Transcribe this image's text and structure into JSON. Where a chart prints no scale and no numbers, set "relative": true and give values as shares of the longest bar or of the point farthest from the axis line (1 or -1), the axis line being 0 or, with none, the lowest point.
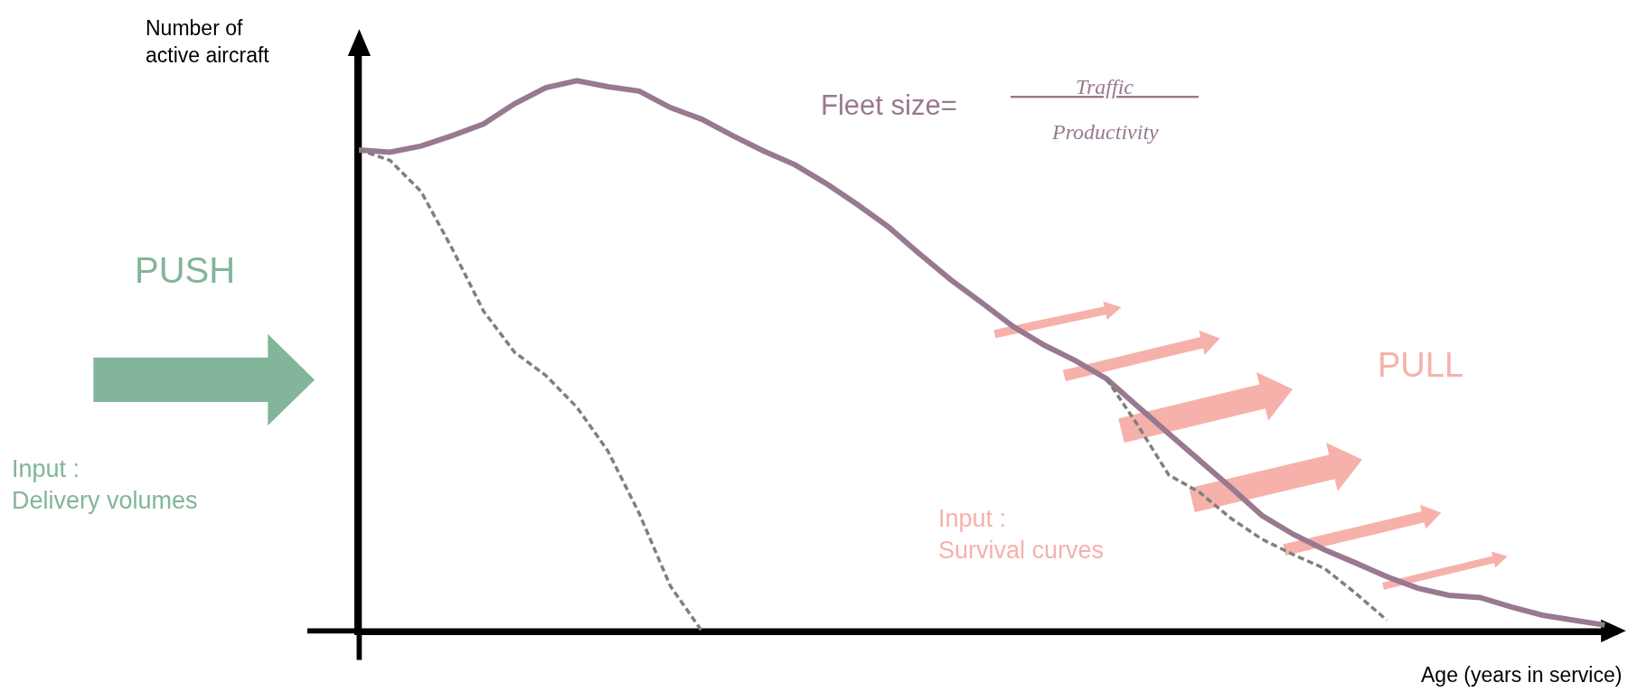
{
  "chart_data": {
    "type": "line",
    "relative": true,
    "xlabel": "Age (years in service)",
    "ylabel": "Number of\nactive aircraft",
    "categories": [
      null,
      null,
      null,
      null,
      null,
      null,
      null,
      null,
      null,
      null,
      null,
      null,
      null,
      null,
      null,
      null,
      null,
      null,
      null,
      null,
      null,
      null,
      null,
      null,
      null,
      null,
      null,
      null,
      null,
      null,
      null,
      null,
      null,
      null,
      null,
      null,
      null,
      null,
      null,
      null,
      null
    ],
    "series": [
      {
        "color": "#98798f",
        "line_style": "solid",
        "values": [
          0.874,
          0.87,
          0.881,
          0.9,
          0.921,
          0.958,
          0.987,
          1.0,
          0.989,
          0.981,
          0.951,
          0.93,
          0.9,
          0.872,
          0.847,
          0.813,
          0.775,
          0.734,
          0.685,
          0.638,
          0.596,
          0.553,
          0.519,
          0.491,
          0.458,
          0.408,
          0.358,
          0.309,
          0.26,
          0.209,
          0.175,
          0.147,
          0.123,
          0.098,
          0.077,
          0.064,
          0.06,
          0.043,
          0.028,
          0.019,
          0.01
        ]
      },
      {
        "color": "#7f7f7f",
        "line_style": "dashed",
        "values": [
          0.874,
          0.855,
          0.798,
          0.694,
          0.581,
          0.506,
          0.464,
          0.406,
          0.326,
          0.213,
          0.081,
          0.0,
          null,
          null,
          null,
          null,
          null,
          null,
          null,
          null,
          null,
          null,
          null,
          null,
          null,
          null,
          null,
          null,
          null,
          null,
          null,
          null,
          null,
          null,
          null,
          null,
          null,
          null,
          null,
          null,
          null
        ]
      },
      {
        "color": "#7f7f7f",
        "line_style": "dashed",
        "values": [
          null,
          null,
          null,
          null,
          null,
          null,
          null,
          null,
          null,
          null,
          null,
          null,
          null,
          null,
          null,
          null,
          null,
          null,
          null,
          null,
          null,
          null,
          null,
          null,
          0.458,
          0.374,
          0.283,
          0.251,
          0.204,
          0.166,
          0.138,
          0.113,
          0.068,
          0.019,
          null,
          null,
          null,
          null,
          null,
          null,
          null
        ]
      }
    ],
    "annotations": [
      "Fleet size=",
      "Traffic",
      "Productivity",
      "PUSH",
      "Input :\nDelivery volumes",
      "PULL",
      "Input :\nSurvival curves"
    ],
    "marker": "none"
  }
}
